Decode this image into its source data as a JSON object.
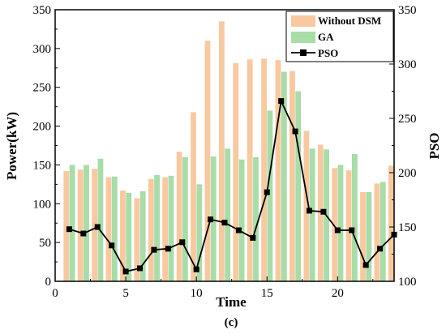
{
  "chart_data": {
    "type": "bar",
    "caption": "(c)",
    "xlabel": "Time",
    "ylabel_left": "Power(kW)",
    "ylabel_right": "PSO",
    "xlim": [
      0,
      24
    ],
    "ylim_left": [
      0,
      350
    ],
    "ylim_right": [
      100,
      350
    ],
    "x_ticks": [
      0,
      5,
      10,
      15,
      20
    ],
    "y_ticks_left": [
      0,
      50,
      100,
      150,
      200,
      250,
      300,
      350
    ],
    "y_ticks_right": [
      100,
      150,
      200,
      250,
      300,
      350
    ],
    "legend_position": "top-right",
    "x": [
      1,
      2,
      3,
      4,
      5,
      6,
      7,
      8,
      9,
      10,
      11,
      12,
      13,
      14,
      15,
      16,
      17,
      18,
      19,
      20,
      21,
      22,
      23,
      24
    ],
    "series": [
      {
        "name": "Without DSM",
        "kind": "bar",
        "axis": "left",
        "color": "#f8c9a0",
        "values": [
          142,
          144,
          145,
          134,
          117,
          107,
          132,
          134,
          167,
          218,
          310,
          335,
          281,
          286,
          287,
          285,
          271,
          194,
          176,
          146,
          143,
          115,
          126,
          149
        ]
      },
      {
        "name": "GA",
        "kind": "bar",
        "axis": "left",
        "color": "#a8dca8",
        "values": [
          150,
          150,
          158,
          135,
          114,
          116,
          137,
          136,
          160,
          125,
          161,
          171,
          157,
          160,
          220,
          270,
          245,
          171,
          170,
          150,
          164,
          115,
          128,
          0
        ]
      },
      {
        "name": "PSO",
        "kind": "line",
        "axis": "right",
        "color": "#000000",
        "values": [
          148,
          144,
          150,
          133,
          109,
          112,
          129,
          130,
          136,
          111,
          157,
          154,
          147,
          140,
          182,
          266,
          238,
          165,
          164,
          147,
          147,
          115,
          130,
          143
        ]
      }
    ]
  }
}
